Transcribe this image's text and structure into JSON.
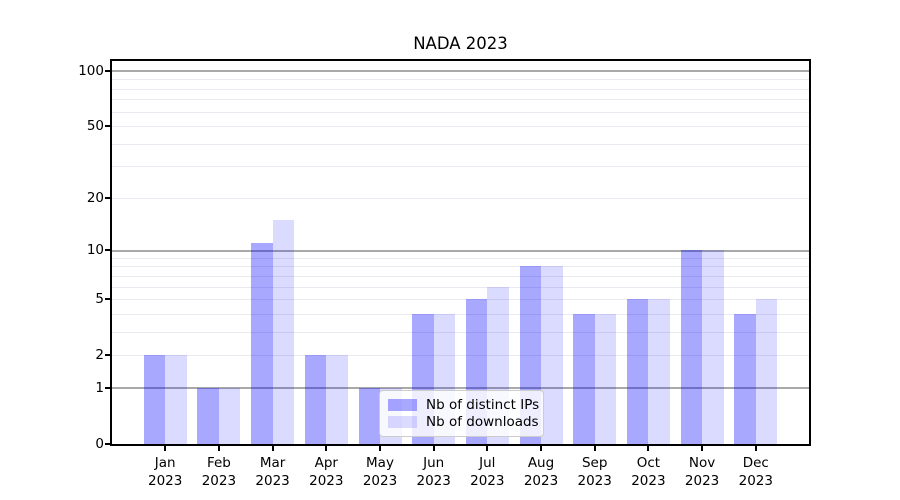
{
  "chart_data": {
    "type": "bar",
    "title": "NADA 2023",
    "categories": [
      "Jan 2023",
      "Feb 2023",
      "Mar 2023",
      "Apr 2023",
      "May 2023",
      "Jun 2023",
      "Jul 2023",
      "Aug 2023",
      "Sep 2023",
      "Oct 2023",
      "Nov 2023",
      "Dec 2023"
    ],
    "series": [
      {
        "name": "Nb of distinct IPs",
        "color": "rgba(0,0,255,0.34)",
        "values": [
          2,
          1,
          11,
          2,
          1,
          4,
          5,
          8,
          4,
          5,
          10,
          4
        ]
      },
      {
        "name": "Nb of downloads",
        "color": "rgba(0,0,255,0.14)",
        "values": [
          2,
          1,
          15,
          2,
          1,
          4,
          6,
          8,
          4,
          5,
          10,
          5
        ]
      }
    ],
    "xlabel": "",
    "ylabel": "",
    "yscale": "log1p",
    "ylim": [
      0,
      113
    ],
    "y_tick_labels": [
      0,
      1,
      2,
      5,
      10,
      20,
      50,
      100
    ],
    "major_gridlines": [
      1,
      10,
      100
    ],
    "minor_gridlines": [
      2,
      3,
      4,
      5,
      6,
      7,
      8,
      9,
      20,
      30,
      40,
      50,
      60,
      70,
      80,
      90
    ],
    "grid": true,
    "legend": {
      "position": "lower-center",
      "items": [
        "Nb of distinct IPs",
        "Nb of downloads"
      ]
    },
    "colors": {
      "major_grid": "#a9a9a9",
      "minor_grid": "#e9e9f0",
      "frame": "#000000",
      "legend_border": "#cccccc",
      "legend_bg": "rgba(255,255,255,0.8)"
    }
  }
}
